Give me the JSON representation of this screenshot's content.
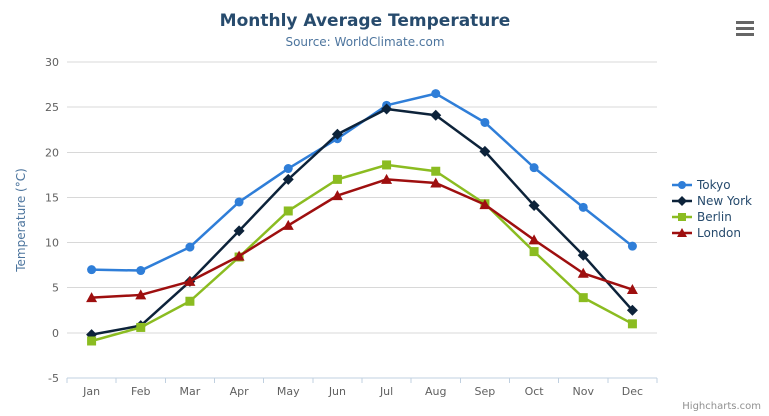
{
  "header": {
    "title": "Monthly Average Temperature",
    "subtitle": "Source: WorldClimate.com"
  },
  "credits": {
    "label": "Highcharts.com"
  },
  "context_menu_icon": "hamburger-menu-icon",
  "colors": {
    "title": "#274b6d",
    "subtitle": "#4d759e",
    "axis_label": "#606060",
    "axis_title": "#4d759e",
    "gridline": "#d8d8d8",
    "axis_line": "#c0d0e0",
    "legend_text": "#274b6d",
    "credits": "#909090",
    "menu_bars": "#666666"
  },
  "chart_data": {
    "type": "line",
    "title": "Monthly Average Temperature",
    "subtitle": "Source: WorldClimate.com",
    "categories": [
      "Jan",
      "Feb",
      "Mar",
      "Apr",
      "May",
      "Jun",
      "Jul",
      "Aug",
      "Sep",
      "Oct",
      "Nov",
      "Dec"
    ],
    "series": [
      {
        "name": "Tokyo",
        "color": "#2f7ed8",
        "marker": "circle",
        "values": [
          7.0,
          6.9,
          9.5,
          14.5,
          18.2,
          21.5,
          25.2,
          26.5,
          23.3,
          18.3,
          13.9,
          9.6
        ]
      },
      {
        "name": "New York",
        "color": "#0d233a",
        "marker": "diamond",
        "values": [
          -0.2,
          0.8,
          5.7,
          11.3,
          17.0,
          22.0,
          24.8,
          24.1,
          20.1,
          14.1,
          8.6,
          2.5
        ]
      },
      {
        "name": "Berlin",
        "color": "#8bbc21",
        "marker": "square",
        "values": [
          -0.9,
          0.6,
          3.5,
          8.4,
          13.5,
          17.0,
          18.6,
          17.9,
          14.3,
          9.0,
          3.9,
          1.0
        ]
      },
      {
        "name": "London",
        "color": "#9e0f0f",
        "marker": "triangle",
        "values": [
          3.9,
          4.2,
          5.7,
          8.5,
          11.9,
          15.2,
          17.0,
          16.6,
          14.2,
          10.3,
          6.6,
          4.8
        ]
      }
    ],
    "xlabel": "",
    "ylabel": "Temperature (°C)",
    "ylim": [
      -5,
      30
    ],
    "yticks": [
      -5,
      0,
      5,
      10,
      15,
      20,
      25,
      30
    ],
    "grid": true,
    "legend_position": "right"
  }
}
